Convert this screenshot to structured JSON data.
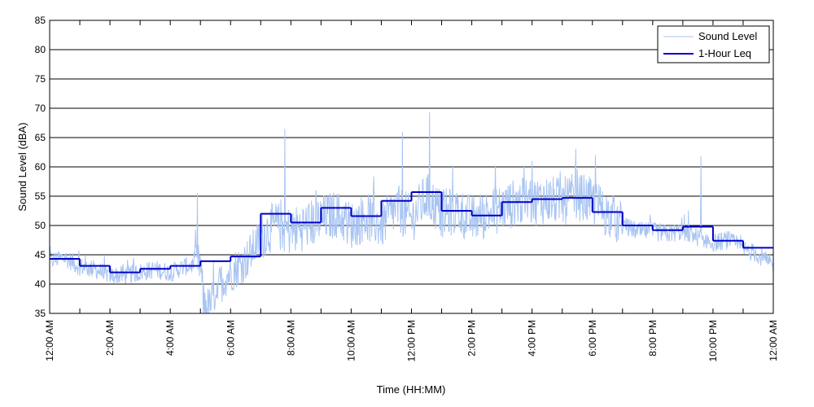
{
  "chart_data": {
    "type": "line",
    "title": "",
    "xlabel": "Time (HH:MM)",
    "ylabel": "Sound Level (dBA)",
    "xlim": [
      0,
      24
    ],
    "ylim": [
      35,
      85
    ],
    "x_ticks": [
      {
        "value": 0,
        "label": "12:00 AM"
      },
      {
        "value": 2,
        "label": "2:00 AM"
      },
      {
        "value": 4,
        "label": "4:00 AM"
      },
      {
        "value": 6,
        "label": "6:00 AM"
      },
      {
        "value": 8,
        "label": "8:00 AM"
      },
      {
        "value": 10,
        "label": "10:00 AM"
      },
      {
        "value": 12,
        "label": "12:00 PM"
      },
      {
        "value": 14,
        "label": "2:00 PM"
      },
      {
        "value": 16,
        "label": "4:00 PM"
      },
      {
        "value": 18,
        "label": "6:00 PM"
      },
      {
        "value": 20,
        "label": "8:00 PM"
      },
      {
        "value": 22,
        "label": "10:00 PM"
      },
      {
        "value": 24,
        "label": "12:00 AM"
      }
    ],
    "x_minor_ticks": [
      1,
      3,
      5,
      7,
      9,
      11,
      13,
      15,
      17,
      19,
      21,
      23
    ],
    "y_ticks": [
      35,
      40,
      45,
      50,
      55,
      60,
      65,
      70,
      75,
      80,
      85
    ],
    "grid": "horizontal",
    "legend": {
      "position": "top-right"
    },
    "series": [
      {
        "name": "Sound Level",
        "style": "line",
        "color": "#a8c4f2",
        "note": "dense per-minute measurements; approximate hourly mean with peaks/minima",
        "x": [
          0,
          0.5,
          1,
          1.5,
          2,
          2.5,
          3,
          3.5,
          4,
          4.5,
          5,
          5.1,
          5.3,
          5.5,
          5.8,
          6,
          6.5,
          7,
          7.2,
          7.5,
          8,
          8.5,
          9,
          9.5,
          10,
          10.5,
          11,
          11.5,
          12,
          12.5,
          13,
          13.5,
          14,
          14.5,
          15,
          15.5,
          16,
          16.5,
          17,
          17.5,
          18,
          18.5,
          19,
          19.5,
          20,
          20.5,
          21,
          21.5,
          22,
          22.5,
          23,
          23.5,
          24
        ],
        "y": [
          44,
          44.5,
          43,
          42.5,
          41.5,
          41.5,
          42,
          42.5,
          42,
          43,
          43.5,
          37,
          36,
          39,
          41,
          42,
          44,
          48,
          49,
          50,
          49,
          50,
          51,
          52,
          50,
          51.5,
          50,
          53,
          51,
          55,
          52,
          52.5,
          51,
          52,
          53,
          54,
          54,
          54.5,
          54,
          55,
          54,
          52,
          50,
          49,
          49,
          48.5,
          49,
          48,
          47,
          47.5,
          46,
          45,
          43
        ],
        "peaks": [
          {
            "x": 4.9,
            "y": 55.5
          },
          {
            "x": 7.8,
            "y": 66.5
          },
          {
            "x": 11.7,
            "y": 66
          },
          {
            "x": 12.6,
            "y": 69.3
          },
          {
            "x": 16,
            "y": 61
          },
          {
            "x": 18.1,
            "y": 62
          },
          {
            "x": 21.6,
            "y": 61.8
          }
        ]
      },
      {
        "name": "1-Hour Leq",
        "style": "step",
        "color": "#0000cc",
        "x": [
          0,
          1,
          2,
          3,
          4,
          5,
          6,
          7,
          8,
          9,
          10,
          11,
          12,
          13,
          14,
          15,
          16,
          17,
          18,
          19,
          20,
          21,
          22,
          23
        ],
        "y": [
          44.3,
          43.1,
          42.0,
          42.6,
          43.1,
          43.9,
          44.7,
          52.0,
          50.5,
          53.0,
          51.6,
          54.2,
          55.7,
          52.5,
          51.7,
          54.0,
          54.5,
          54.7,
          52.3,
          50.0,
          49.2,
          49.8,
          47.4,
          46.2
        ]
      }
    ]
  }
}
